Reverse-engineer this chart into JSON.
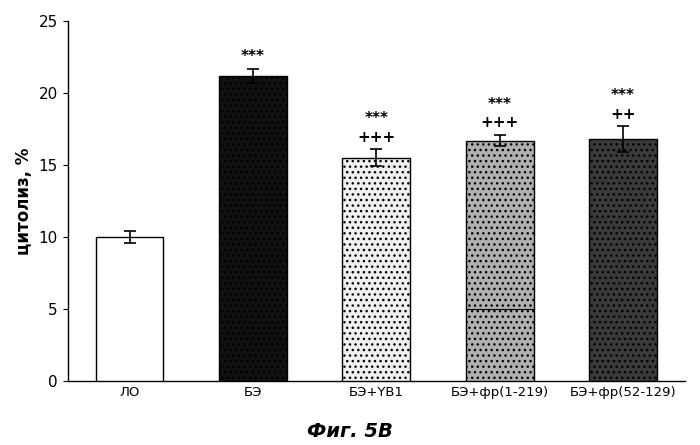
{
  "categories": [
    "ЛО",
    "БЭ",
    "БЭ+YB1",
    "БЭ+фр(1-219)",
    "БЭ+фр(52-129)"
  ],
  "values": [
    10.0,
    21.2,
    15.5,
    16.7,
    16.8
  ],
  "errors": [
    0.4,
    0.5,
    0.6,
    0.4,
    0.9
  ],
  "ylabel": "цитолиз, %",
  "ylim": [
    0,
    25
  ],
  "yticks": [
    0,
    5,
    10,
    15,
    20,
    25
  ],
  "figure_title": "Фиг. 5В",
  "background_color": "white",
  "bar_width": 0.55,
  "title_fontsize": 14,
  "axis_fontsize": 12,
  "tick_fontsize": 11,
  "annotation_fontsize": 11
}
